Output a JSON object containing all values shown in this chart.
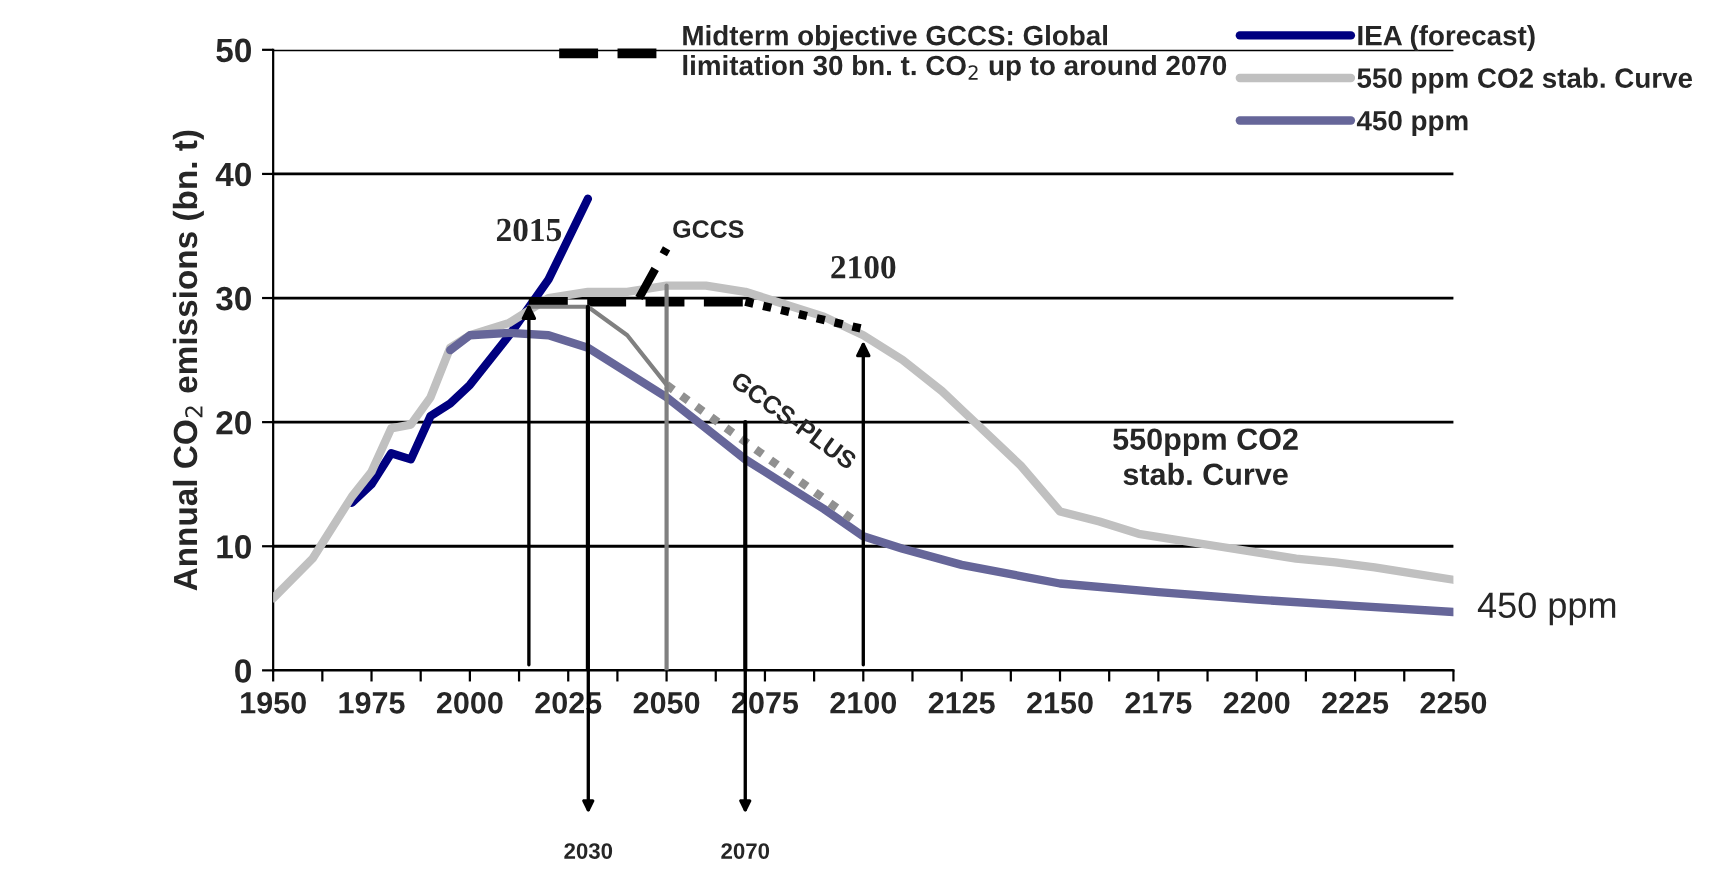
{
  "chart_data": {
    "type": "line",
    "ylabel": "Annual CO$_{2}$ emissions (bn. t)",
    "xlim": [
      1950,
      2250
    ],
    "ylim": [
      0,
      50
    ],
    "xticks": [
      1950,
      {
        "value": 1962.5,
        "label": null
      },
      1975,
      {
        "value": 1987.5,
        "label": null
      },
      2000,
      {
        "value": 2012.5,
        "label": null
      },
      2025,
      {
        "value": 2037.5,
        "label": null
      },
      2050,
      {
        "value": 2062.5,
        "label": null
      },
      2075,
      {
        "value": 2087.5,
        "label": null
      },
      2100,
      {
        "value": 2112.5,
        "label": null
      },
      2125,
      {
        "value": 2137.5,
        "label": null
      },
      2150,
      {
        "value": 2162.5,
        "label": null
      },
      2175,
      {
        "value": 2187.5,
        "label": null
      },
      2200,
      {
        "value": 2212.5,
        "label": null
      },
      2225,
      {
        "value": 2237.5,
        "label": null
      },
      2250
    ],
    "yticks": [
      0,
      10,
      20,
      30,
      40,
      50
    ],
    "grid": "y",
    "legend": "top right",
    "series": [
      {
        "name": "IEA (forecast)",
        "color": "#000080",
        "x": [
          1970,
          1975,
          1980,
          1985,
          1990,
          1995,
          2000,
          2010,
          2020,
          2030
        ],
        "values": [
          13.5,
          15,
          17.5,
          17,
          20.5,
          21.5,
          23,
          27,
          31.5,
          38
        ]
      },
      {
        "name": "550 ppm CO2 stab. Curve",
        "color": "#c0c0c0",
        "x": [
          1950,
          1960,
          1970,
          1975,
          1980,
          1985,
          1990,
          1995,
          2000,
          2010,
          2020,
          2030,
          2040,
          2050,
          2060,
          2070,
          2080,
          2090,
          2100,
          2110,
          2120,
          2125,
          2130,
          2140,
          2150,
          2160,
          2170,
          2180,
          2190,
          2200,
          2210,
          2220,
          2230,
          2240,
          2250
        ],
        "values": [
          5.8,
          9,
          14,
          16,
          19.5,
          19.8,
          22,
          26,
          27,
          28,
          30,
          30.5,
          30.5,
          31,
          31,
          30.5,
          29.5,
          28.5,
          27,
          25,
          22.5,
          21,
          19.5,
          16.5,
          12.8,
          12,
          11,
          10.5,
          10,
          9.5,
          9,
          8.7,
          8.3,
          7.8,
          7.3
        ]
      },
      {
        "name": "450 ppm",
        "color": "#666699",
        "x": [
          1995,
          2000,
          2010,
          2020,
          2030,
          2040,
          2050,
          2060,
          2070,
          2080,
          2090,
          2100,
          2110,
          2125,
          2150,
          2175,
          2200,
          2225,
          2250
        ],
        "values": [
          25.8,
          27,
          27.2,
          27,
          26,
          24,
          22,
          19.5,
          17,
          15,
          13,
          10.8,
          9.8,
          8.5,
          7,
          6.3,
          5.7,
          5.2,
          4.7
        ]
      },
      {
        "name": "Midterm objective GCCS: Global limitation 30 bn. t. CO$_{2}$ up to around 2070",
        "color": "#000000",
        "line_style": "dashed",
        "x": [
          2015,
          2070
        ],
        "values": [
          29.7,
          29.7
        ]
      },
      {
        "color": "#808080",
        "x": [
          2015,
          2030,
          2040,
          2050
        ],
        "values": [
          29.3,
          29.3,
          27,
          23
        ]
      },
      {
        "color": "#000000",
        "line_style": "dotted",
        "x": [
          2070,
          2100
        ],
        "values": [
          29.7,
          27.5
        ]
      },
      {
        "color": "#909090",
        "line_style": "dotted",
        "x": [
          2050,
          2098
        ],
        "values": [
          23,
          12
        ]
      },
      {
        "color": "#000000",
        "line_style": "dashed",
        "x": [
          2043,
          2050
        ],
        "values": [
          30,
          34
        ]
      },
      {
        "color": "#000000",
        "x": [
          2030,
          2030
        ],
        "values": [
          0,
          29.3
        ]
      },
      {
        "color": "#808080",
        "x": [
          2050,
          2050
        ],
        "values": [
          0,
          31
        ]
      },
      {
        "color": "#000000",
        "x": [
          2070,
          2070
        ],
        "values": [
          0,
          20
        ]
      }
    ],
    "annotations": [
      {
        "text": "2015",
        "x": 2015,
        "y": 30
      },
      {
        "text": "2100",
        "x": 2100,
        "y": 27
      },
      "2030",
      "2070",
      {
        "text": "GCCS",
        "x": 2050,
        "y": 34
      },
      "GCCS-PLUS",
      "550ppm CO2\nstab. Curve",
      "450 ppm"
    ]
  }
}
